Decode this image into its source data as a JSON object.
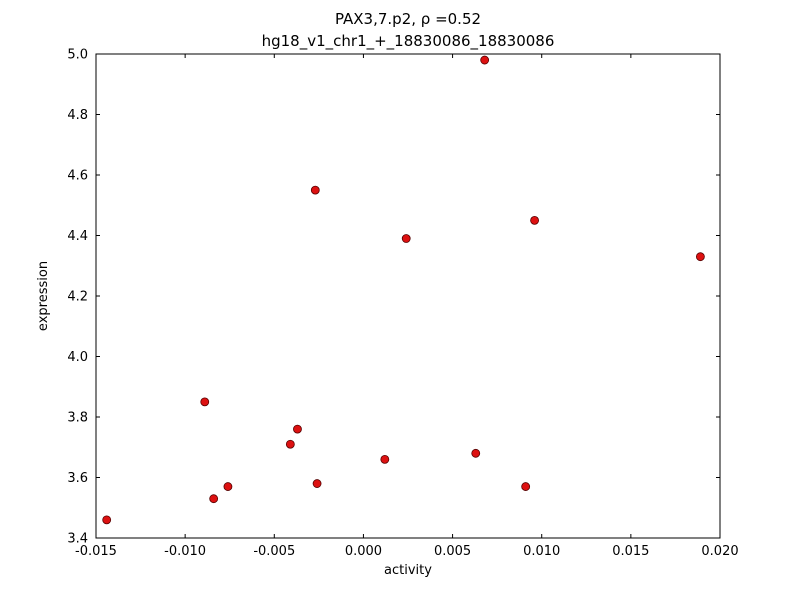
{
  "figure": {
    "background": "#ffffff",
    "frame_color": "#000000"
  },
  "chart_data": {
    "type": "scatter",
    "title_line1": "PAX3,7.p2, ρ =0.52",
    "title_line2": "hg18_v1_chr1_+_18830086_18830086",
    "xlabel": "activity",
    "ylabel": "expression",
    "xlim": [
      -0.015,
      0.02
    ],
    "ylim": [
      3.4,
      5.0
    ],
    "xticks": [
      -0.015,
      -0.01,
      -0.005,
      0.0,
      0.005,
      0.01,
      0.015,
      0.02
    ],
    "xtick_labels": [
      "-0.015",
      "-0.010",
      "-0.005",
      "0.000",
      "0.005",
      "0.010",
      "0.015",
      "0.020"
    ],
    "yticks": [
      3.4,
      3.6,
      3.8,
      4.0,
      4.2,
      4.4,
      4.6,
      4.8,
      5.0
    ],
    "ytick_labels": [
      "3.4",
      "3.6",
      "3.8",
      "4.0",
      "4.2",
      "4.4",
      "4.6",
      "4.8",
      "5.0"
    ],
    "grid": false,
    "legend": null,
    "marker": {
      "shape": "circle",
      "fill": "#dd1111",
      "edge": "#550000",
      "radius": 4
    },
    "points": [
      [
        -0.0144,
        3.46
      ],
      [
        -0.0089,
        3.85
      ],
      [
        -0.0084,
        3.53
      ],
      [
        -0.0076,
        3.57
      ],
      [
        -0.0041,
        3.71
      ],
      [
        -0.0037,
        3.76
      ],
      [
        -0.0027,
        4.55
      ],
      [
        -0.0026,
        3.58
      ],
      [
        0.0012,
        3.66
      ],
      [
        0.0024,
        4.39
      ],
      [
        0.0063,
        3.68
      ],
      [
        0.0068,
        4.98
      ],
      [
        0.0091,
        3.57
      ],
      [
        0.0096,
        4.45
      ],
      [
        0.0189,
        4.33
      ]
    ]
  }
}
